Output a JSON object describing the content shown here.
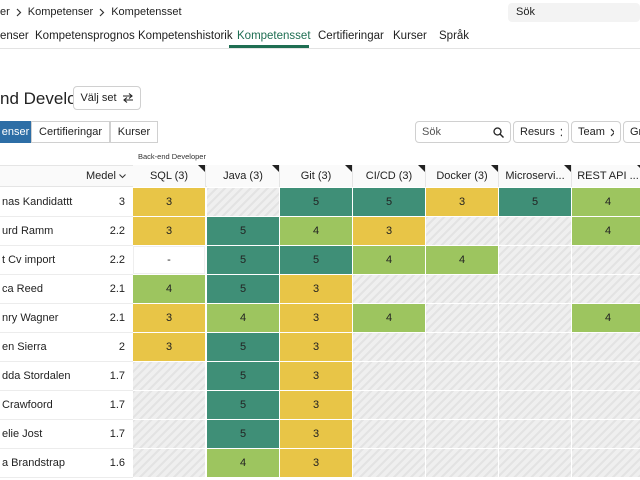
{
  "breadcrumb": {
    "items": [
      "er",
      "Kompetenser",
      "Kompetensset"
    ]
  },
  "search_top": "Sök",
  "tabs": [
    "enser",
    "Kompetensprognos",
    "Kompetenshistorik",
    "Kompetensset",
    "Certifieringar",
    "Kurser",
    "Språk"
  ],
  "header": {
    "title": "nd Developer",
    "button": "Välj set"
  },
  "subtabs": [
    "enser",
    "Certifieringar",
    "Kurser"
  ],
  "toolbar": {
    "search": "Sök",
    "filters": [
      "Resurs",
      "Team",
      "Gr"
    ]
  },
  "table": {
    "group": "Back-end Developer",
    "average_header": "Medel",
    "columns": [
      "SQL (3)",
      "Java (3)",
      "Git (3)",
      "CI/CD (3)",
      "Docker (3)",
      "Microservi...",
      "REST API ..."
    ],
    "rows": [
      {
        "name": "nas Kandidattt",
        "average": 3,
        "cells": [
          3,
          null,
          5,
          5,
          3,
          5,
          4
        ]
      },
      {
        "name": "urd Ramm",
        "average": 2.2,
        "cells": [
          3,
          5,
          4,
          3,
          null,
          null,
          4
        ]
      },
      {
        "name": "t Cv import",
        "average": 2.2,
        "cells": [
          "-",
          5,
          5,
          4,
          4,
          null,
          null
        ]
      },
      {
        "name": "ca Reed",
        "average": 2.1,
        "cells": [
          4,
          5,
          3,
          null,
          null,
          null,
          null
        ]
      },
      {
        "name": "nry Wagner",
        "average": 2.1,
        "cells": [
          3,
          4,
          3,
          4,
          null,
          null,
          4
        ]
      },
      {
        "name": "en Sierra",
        "average": 2,
        "cells": [
          3,
          5,
          3,
          null,
          null,
          null,
          null
        ]
      },
      {
        "name": "dda Stordalen",
        "average": 1.7,
        "cells": [
          null,
          5,
          3,
          null,
          null,
          null,
          null
        ]
      },
      {
        "name": "Crawfoord",
        "average": 1.7,
        "cells": [
          null,
          5,
          3,
          null,
          null,
          null,
          null
        ]
      },
      {
        "name": "elie Jost",
        "average": 1.7,
        "cells": [
          null,
          5,
          3,
          null,
          null,
          null,
          null
        ]
      },
      {
        "name": "a Brandstrap",
        "average": 1.6,
        "cells": [
          null,
          4,
          3,
          null,
          null,
          null,
          null
        ]
      }
    ]
  }
}
